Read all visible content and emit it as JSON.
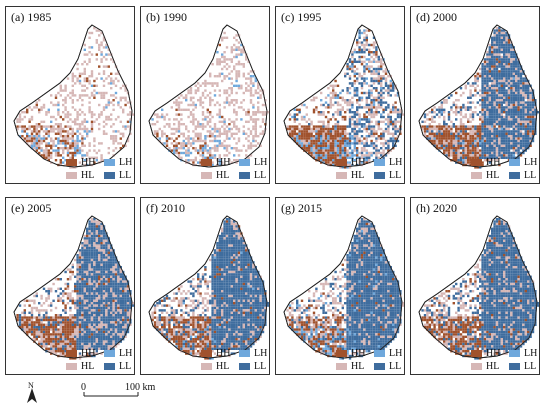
{
  "colors": {
    "HH": "#a0522d",
    "HL": "#d6b7b6",
    "LH": "#6fa8dc",
    "LL": "#3f6d9e"
  },
  "legend": [
    {
      "key": "HH",
      "label": "HH"
    },
    {
      "key": "LH",
      "label": "LH"
    },
    {
      "key": "HL",
      "label": "HL"
    },
    {
      "key": "LL",
      "label": "LL"
    }
  ],
  "panels": [
    {
      "id": "1985",
      "title": "(a) 1985",
      "HH": 0.06,
      "HL": 0.26,
      "LH": 0.04,
      "LL": 0.0
    },
    {
      "id": "1990",
      "title": "(b) 1990",
      "HH": 0.02,
      "HL": 0.32,
      "LH": 0.05,
      "LL": 0.0
    },
    {
      "id": "1995",
      "title": "(c) 1995",
      "HH": 0.14,
      "HL": 0.24,
      "LH": 0.06,
      "LL": 0.12
    },
    {
      "id": "2000",
      "title": "(d) 2000",
      "HH": 0.14,
      "HL": 0.22,
      "LH": 0.01,
      "LL": 0.35
    },
    {
      "id": "2005",
      "title": "(e) 2005",
      "HH": 0.14,
      "HL": 0.24,
      "LH": 0.0,
      "LL": 0.36
    },
    {
      "id": "2010",
      "title": "(f) 2010",
      "HH": 0.12,
      "HL": 0.24,
      "LH": 0.01,
      "LL": 0.4
    },
    {
      "id": "2015",
      "title": "(g) 2015",
      "HH": 0.08,
      "HL": 0.24,
      "LH": 0.05,
      "LL": 0.4
    },
    {
      "id": "2020",
      "title": "(h) 2020",
      "HH": 0.12,
      "HL": 0.24,
      "LH": 0.0,
      "LL": 0.4
    }
  ],
  "north_arrow": {
    "label": "N"
  },
  "scale": {
    "start_label": "0",
    "end_label": "100 km"
  }
}
